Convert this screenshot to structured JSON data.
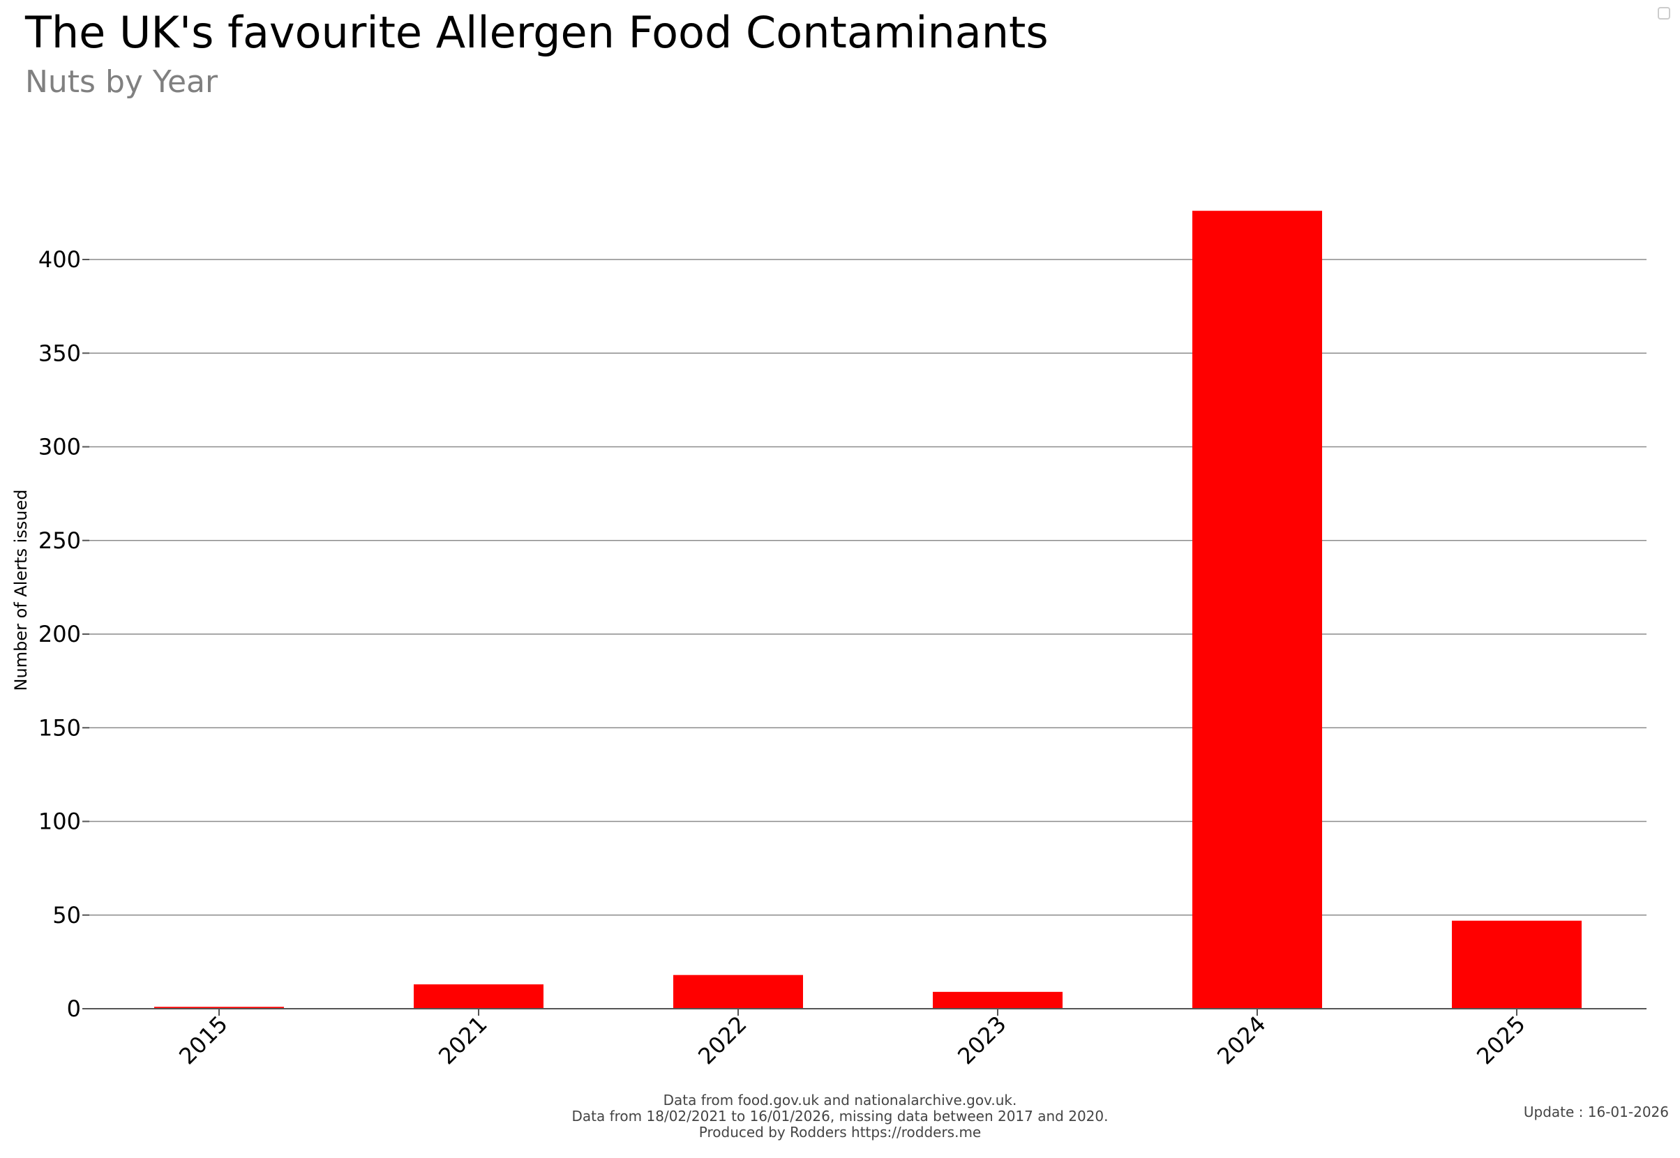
{
  "title": "The UK's favourite Allergen Food Contaminants",
  "subtitle": "Nuts by Year",
  "footer": {
    "line1": "Data from food.gov.uk and nationalarchive.gov.uk.",
    "line2": "Data from 18/02/2021 to 16/01/2026, missing data between 2017 and 2020.",
    "line3": "Produced by Rodders https://rodders.me",
    "update": "Update : 16-01-2026"
  },
  "chart_data": {
    "type": "bar",
    "title": "The UK's favourite Allergen Food Contaminants",
    "subtitle": "Nuts by Year",
    "xlabel": "",
    "ylabel": "Number of Alerts issued",
    "categories": [
      "2015",
      "2021",
      "2022",
      "2023",
      "2024",
      "2025"
    ],
    "values": [
      1,
      13,
      18,
      9,
      426,
      47
    ],
    "ylim": [
      0,
      426
    ],
    "yticks": [
      0,
      50,
      100,
      150,
      200,
      250,
      300,
      350,
      400
    ],
    "grid": true,
    "bar_color": "#ff0000"
  }
}
